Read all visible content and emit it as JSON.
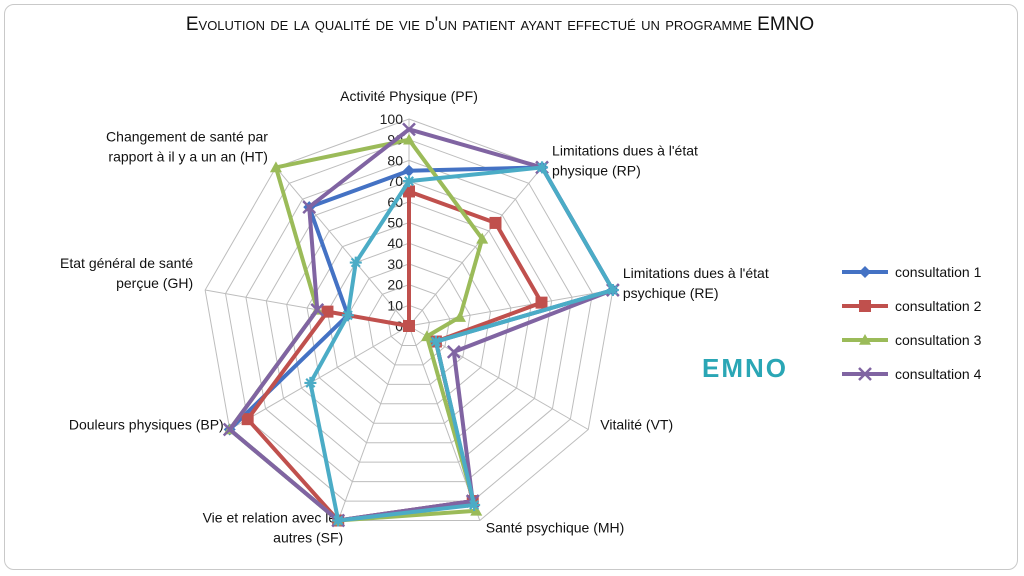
{
  "chart_data": {
    "type": "radar",
    "title": "Evolution de la qualité de vie d'un patient ayant effectué un programme EMNO",
    "axes": [
      {
        "label_lines": [
          "Activité Physique (PF)"
        ]
      },
      {
        "label_lines": [
          "Limitations dues à l'état",
          "physique (RP)"
        ]
      },
      {
        "label_lines": [
          "Limitations dues à l'état",
          "psychique (RE)"
        ]
      },
      {
        "label_lines": [
          "Vitalité (VT)"
        ]
      },
      {
        "label_lines": [
          "Santé psychique (MH)"
        ]
      },
      {
        "label_lines": [
          "Vie et relation avec les",
          "autres (SF)"
        ]
      },
      {
        "label_lines": [
          "Douleurs physiques (BP)"
        ]
      },
      {
        "label_lines": [
          "Etat général de santé",
          "perçue (GH)"
        ]
      },
      {
        "label_lines": [
          "Changement de santé par",
          "rapport à il y a un an (HT)"
        ]
      }
    ],
    "r_ticks": [
      "0",
      "10",
      "20",
      "30",
      "40",
      "50",
      "60",
      "70",
      "80",
      "90",
      "100"
    ],
    "r_range": [
      0,
      100
    ],
    "grid": true,
    "legend_position": "right",
    "series": [
      {
        "name": "consultation 1",
        "color": "#4472C4",
        "marker": "diamond",
        "values": [
          75,
          100,
          100,
          15,
          90,
          100,
          100,
          30,
          75
        ]
      },
      {
        "name": "consultation 2",
        "color": "#C0504D",
        "marker": "square",
        "values": [
          65,
          65,
          65,
          15,
          90,
          100,
          90,
          40,
          0
        ]
      },
      {
        "name": "consultation 3",
        "color": "#9BBB59",
        "marker": "triangle",
        "values": [
          90,
          55,
          25,
          10,
          95,
          100,
          100,
          45,
          100
        ]
      },
      {
        "name": "consultation 4",
        "color": "#8064A2",
        "marker": "x",
        "values": [
          95,
          100,
          100,
          25,
          90,
          100,
          100,
          45,
          75
        ]
      },
      {
        "name": "",
        "color": "#4BACC6",
        "marker": "star",
        "values": [
          70,
          100,
          100,
          15,
          92,
          100,
          55,
          30,
          40
        ]
      }
    ]
  },
  "brand_text": "EMNO",
  "brand_color": "#2AA6B5"
}
